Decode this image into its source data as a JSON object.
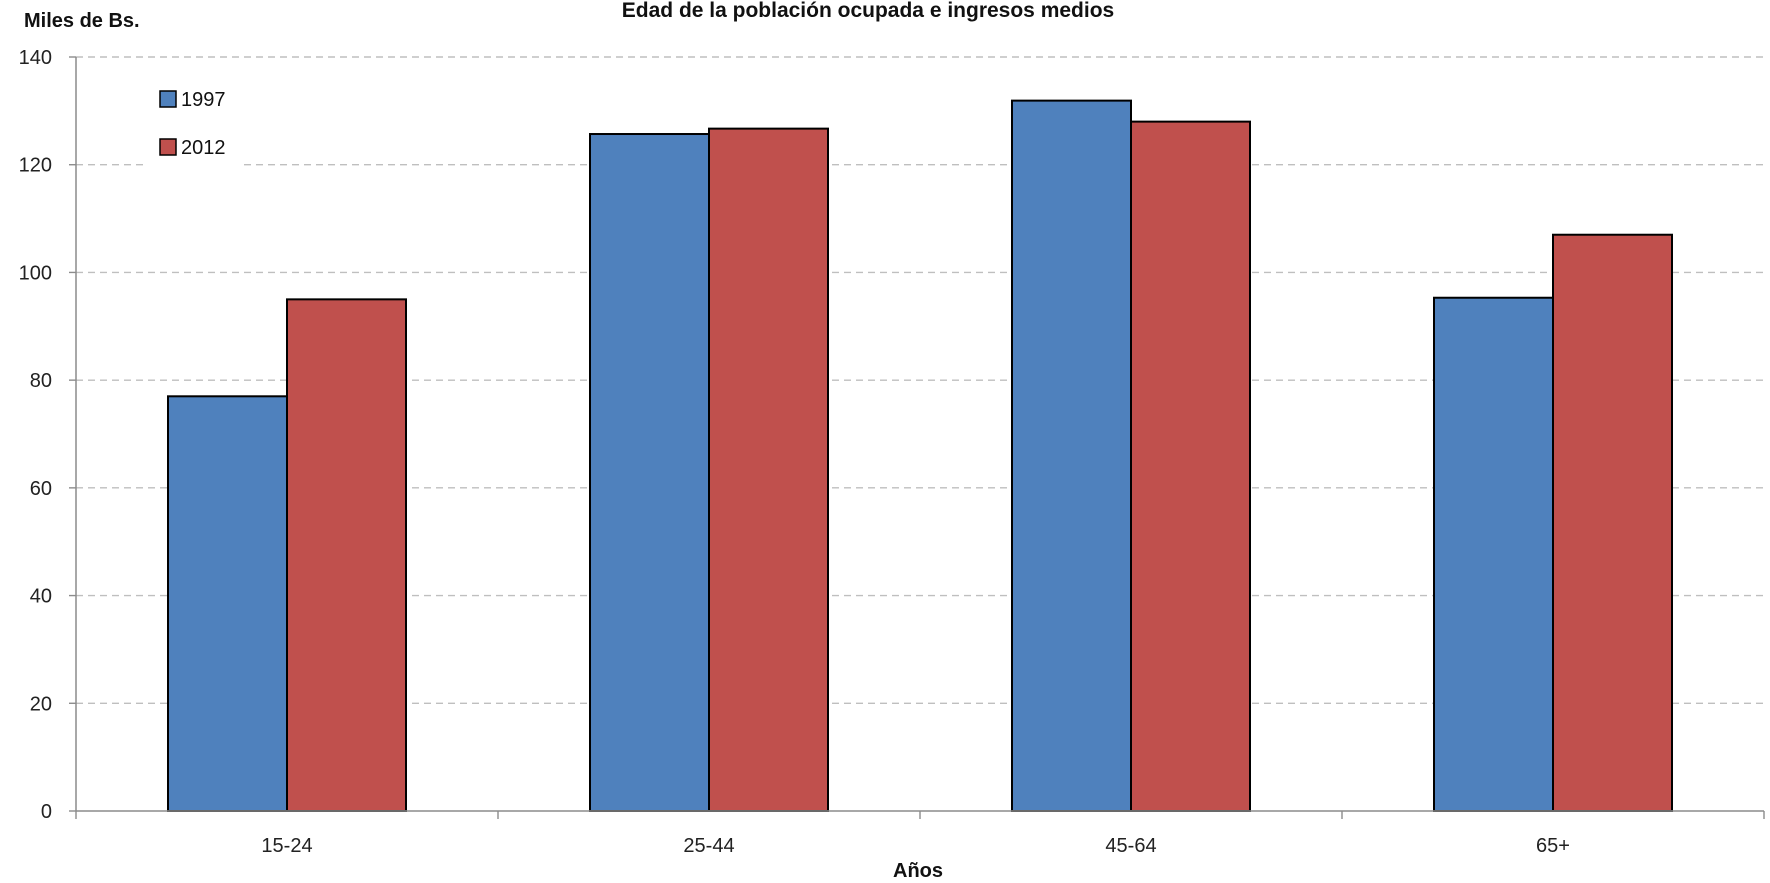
{
  "chart_data": {
    "type": "bar",
    "title": "Edad de la población ocupada e ingresos medios",
    "ylabel": "Miles de Bs.",
    "xlabel": "Años",
    "categories": [
      "15-24",
      "25-44",
      "45-64",
      "65+"
    ],
    "series": [
      {
        "name": "1997",
        "color": "#4F81BD",
        "values": [
          77,
          125.7,
          131.9,
          95.3
        ]
      },
      {
        "name": "2012",
        "color": "#C0504D",
        "values": [
          95,
          126.7,
          128,
          107
        ]
      }
    ],
    "ylim": [
      0,
      140
    ],
    "yticks": [
      0,
      20,
      40,
      60,
      80,
      100,
      120,
      140
    ],
    "grid": true,
    "legend_position": "top-left"
  }
}
